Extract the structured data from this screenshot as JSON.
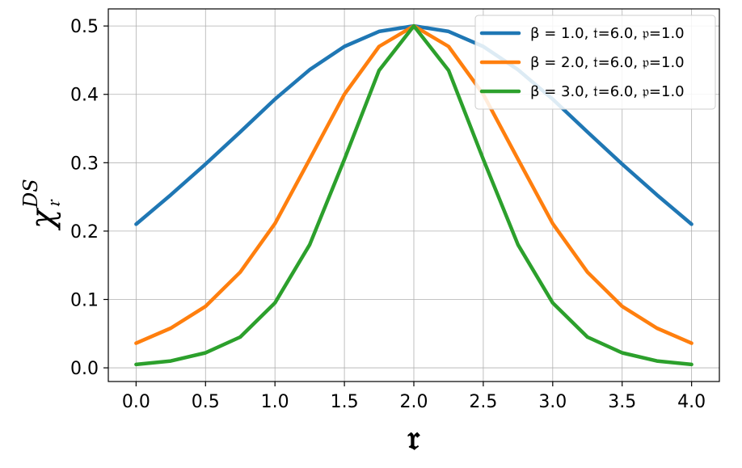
{
  "chart_data": {
    "type": "line",
    "xlabel": "𝔯",
    "ylabel": "χ",
    "ylabel_sub": "𝔯",
    "ylabel_sup": "DS",
    "xlim": [
      -0.2,
      4.2
    ],
    "ylim": [
      -0.02,
      0.525
    ],
    "xticks": [
      0.0,
      0.5,
      1.0,
      1.5,
      2.0,
      2.5,
      3.0,
      3.5,
      4.0
    ],
    "xtick_labels": [
      "0.0",
      "0.5",
      "1.0",
      "1.5",
      "2.0",
      "2.5",
      "3.0",
      "3.5",
      "4.0"
    ],
    "yticks": [
      0.0,
      0.1,
      0.2,
      0.3,
      0.4,
      0.5
    ],
    "ytick_labels": [
      "0.0",
      "0.1",
      "0.2",
      "0.3",
      "0.4",
      "0.5"
    ],
    "grid": true,
    "legend_position": "top-right",
    "x": [
      0.0,
      0.25,
      0.5,
      0.75,
      1.0,
      1.25,
      1.5,
      1.75,
      2.0,
      2.25,
      2.5,
      2.75,
      3.0,
      3.25,
      3.5,
      3.75,
      4.0
    ],
    "series": [
      {
        "name": "β = 1.0, 𝔱=6.0, 𝔭=1.0",
        "color": "#1f77b4",
        "values": [
          0.21,
          0.253,
          0.298,
          0.345,
          0.393,
          0.436,
          0.47,
          0.492,
          0.5,
          0.492,
          0.47,
          0.436,
          0.393,
          0.345,
          0.298,
          0.253,
          0.21
        ]
      },
      {
        "name": "β = 2.0, 𝔱=6.0, 𝔭=1.0",
        "color": "#ff7f0e",
        "values": [
          0.036,
          0.058,
          0.09,
          0.14,
          0.211,
          0.305,
          0.4,
          0.47,
          0.5,
          0.47,
          0.4,
          0.305,
          0.211,
          0.14,
          0.09,
          0.058,
          0.036
        ]
      },
      {
        "name": "β = 3.0, 𝔱=6.0, 𝔭=1.0",
        "color": "#2ca02c",
        "values": [
          0.005,
          0.01,
          0.022,
          0.045,
          0.095,
          0.18,
          0.305,
          0.435,
          0.5,
          0.435,
          0.305,
          0.18,
          0.095,
          0.045,
          0.022,
          0.01,
          0.005
        ]
      }
    ]
  }
}
